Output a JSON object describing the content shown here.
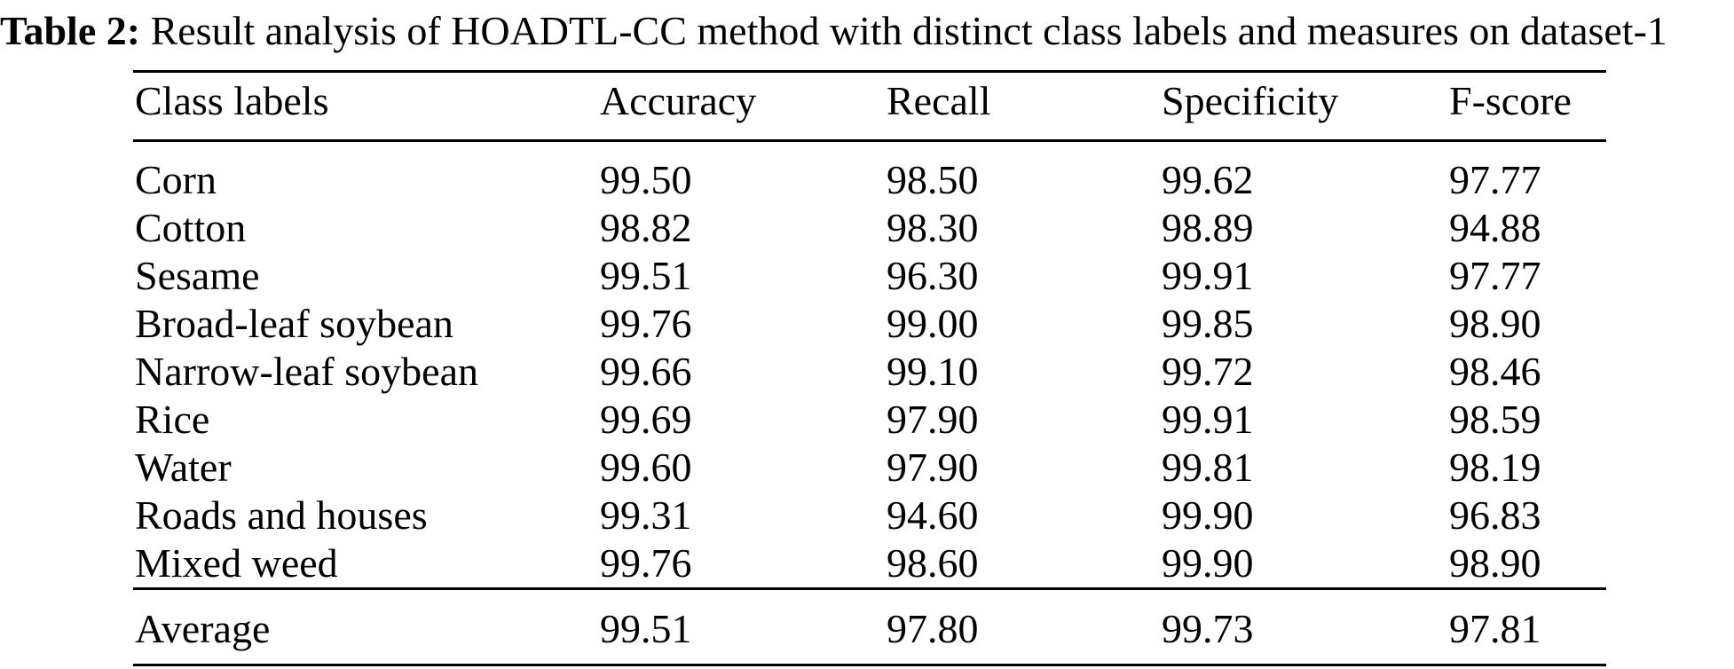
{
  "caption": {
    "label": "Table 2:",
    "text": " Result analysis of HOADTL-CC method with distinct class labels and measures on dataset-1"
  },
  "table": {
    "headers": [
      "Class labels",
      "Accuracy",
      "Recall",
      "Specificity",
      "F-score"
    ],
    "rows": [
      [
        "Corn",
        "99.50",
        "98.50",
        "99.62",
        "97.77"
      ],
      [
        "Cotton",
        "98.82",
        "98.30",
        "98.89",
        "94.88"
      ],
      [
        "Sesame",
        "99.51",
        "96.30",
        "99.91",
        "97.77"
      ],
      [
        "Broad-leaf soybean",
        "99.76",
        "99.00",
        "99.85",
        "98.90"
      ],
      [
        "Narrow-leaf soybean",
        "99.66",
        "99.10",
        "99.72",
        "98.46"
      ],
      [
        "Rice",
        "99.69",
        "97.90",
        "99.91",
        "98.59"
      ],
      [
        "Water",
        "99.60",
        "97.90",
        "99.81",
        "98.19"
      ],
      [
        "Roads and houses",
        "99.31",
        "94.60",
        "99.90",
        "96.83"
      ],
      [
        "Mixed weed",
        "99.76",
        "98.60",
        "99.90",
        "98.90"
      ]
    ],
    "footer": [
      "Average",
      "99.51",
      "97.80",
      "99.73",
      "97.81"
    ]
  }
}
